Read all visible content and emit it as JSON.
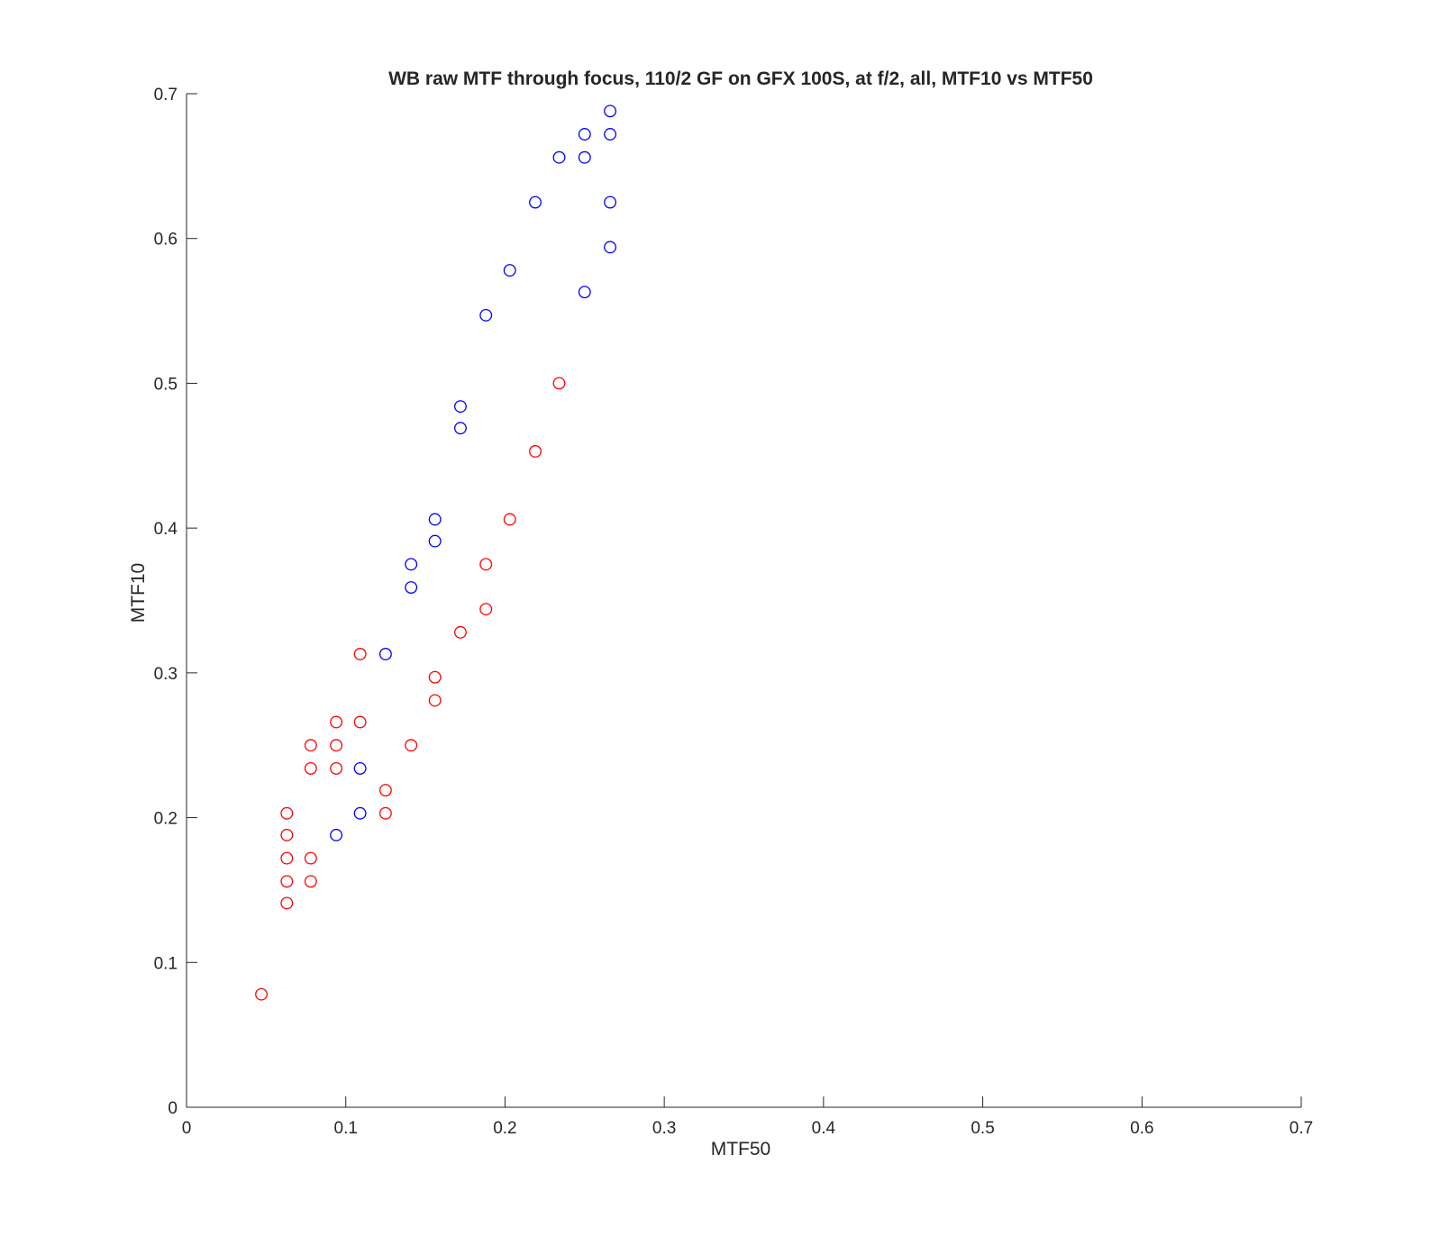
{
  "chart_data": {
    "type": "scatter",
    "title": "WB raw MTF through focus, 110/2 GF on GFX 100S, at f/2, all, MTF10 vs MTF50",
    "xlabel": "MTF50",
    "ylabel": "MTF10",
    "xlim": [
      0,
      0.7
    ],
    "ylim": [
      0,
      0.7
    ],
    "xticks": [
      "0",
      "0.1",
      "0.2",
      "0.3",
      "0.4",
      "0.5",
      "0.6",
      "0.7"
    ],
    "yticks": [
      "0",
      "0.1",
      "0.2",
      "0.3",
      "0.4",
      "0.5",
      "0.6",
      "0.7"
    ],
    "grid": false,
    "marker": "circle-open",
    "series": [
      {
        "color": "#0000ff",
        "points": [
          [
            0.266,
            0.688
          ],
          [
            0.25,
            0.672
          ],
          [
            0.266,
            0.672
          ],
          [
            0.234,
            0.656
          ],
          [
            0.25,
            0.656
          ],
          [
            0.219,
            0.625
          ],
          [
            0.266,
            0.625
          ],
          [
            0.266,
            0.594
          ],
          [
            0.203,
            0.578
          ],
          [
            0.25,
            0.563
          ],
          [
            0.188,
            0.547
          ],
          [
            0.172,
            0.484
          ],
          [
            0.172,
            0.469
          ],
          [
            0.156,
            0.406
          ],
          [
            0.156,
            0.391
          ],
          [
            0.141,
            0.375
          ],
          [
            0.141,
            0.359
          ],
          [
            0.125,
            0.313
          ],
          [
            0.109,
            0.234
          ],
          [
            0.109,
            0.203
          ],
          [
            0.094,
            0.188
          ]
        ]
      },
      {
        "color": "#ff0000",
        "points": [
          [
            0.234,
            0.5
          ],
          [
            0.219,
            0.453
          ],
          [
            0.203,
            0.406
          ],
          [
            0.188,
            0.375
          ],
          [
            0.188,
            0.344
          ],
          [
            0.172,
            0.328
          ],
          [
            0.109,
            0.313
          ],
          [
            0.156,
            0.297
          ],
          [
            0.156,
            0.281
          ],
          [
            0.094,
            0.266
          ],
          [
            0.109,
            0.266
          ],
          [
            0.078,
            0.25
          ],
          [
            0.094,
            0.25
          ],
          [
            0.141,
            0.25
          ],
          [
            0.078,
            0.234
          ],
          [
            0.094,
            0.234
          ],
          [
            0.125,
            0.219
          ],
          [
            0.063,
            0.203
          ],
          [
            0.125,
            0.203
          ],
          [
            0.063,
            0.188
          ],
          [
            0.063,
            0.172
          ],
          [
            0.078,
            0.172
          ],
          [
            0.063,
            0.156
          ],
          [
            0.078,
            0.156
          ],
          [
            0.063,
            0.141
          ],
          [
            0.047,
            0.078
          ]
        ]
      }
    ]
  }
}
